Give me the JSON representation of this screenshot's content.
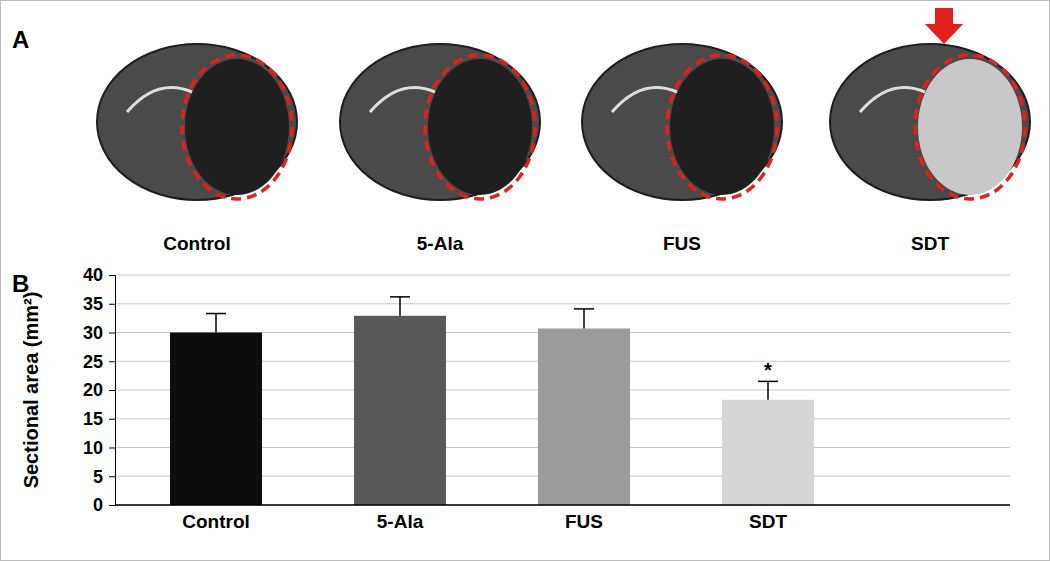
{
  "panel_a": {
    "label": "A",
    "images": [
      "Control",
      "5-Ala",
      "FUS",
      "SDT"
    ]
  },
  "panel_b": {
    "label": "B"
  },
  "chart_data": {
    "type": "bar",
    "y_label": "Sectional area  (mm²)",
    "categories": [
      "Control",
      "5-Ala",
      "FUS",
      "SDT"
    ],
    "values": [
      30.0,
      32.9,
      30.7,
      18.3
    ],
    "errors": [
      3.3,
      3.3,
      3.4,
      3.2
    ],
    "colors": [
      "#0d0d0d",
      "#595959",
      "#9a9c9b",
      "#d4d7d6"
    ],
    "ylim": [
      0,
      40
    ],
    "yticks": [
      0,
      5,
      10,
      15,
      20,
      25,
      30,
      35,
      40
    ],
    "grid": true,
    "annotations": [
      {
        "text": "*",
        "category": "SDT"
      }
    ]
  }
}
